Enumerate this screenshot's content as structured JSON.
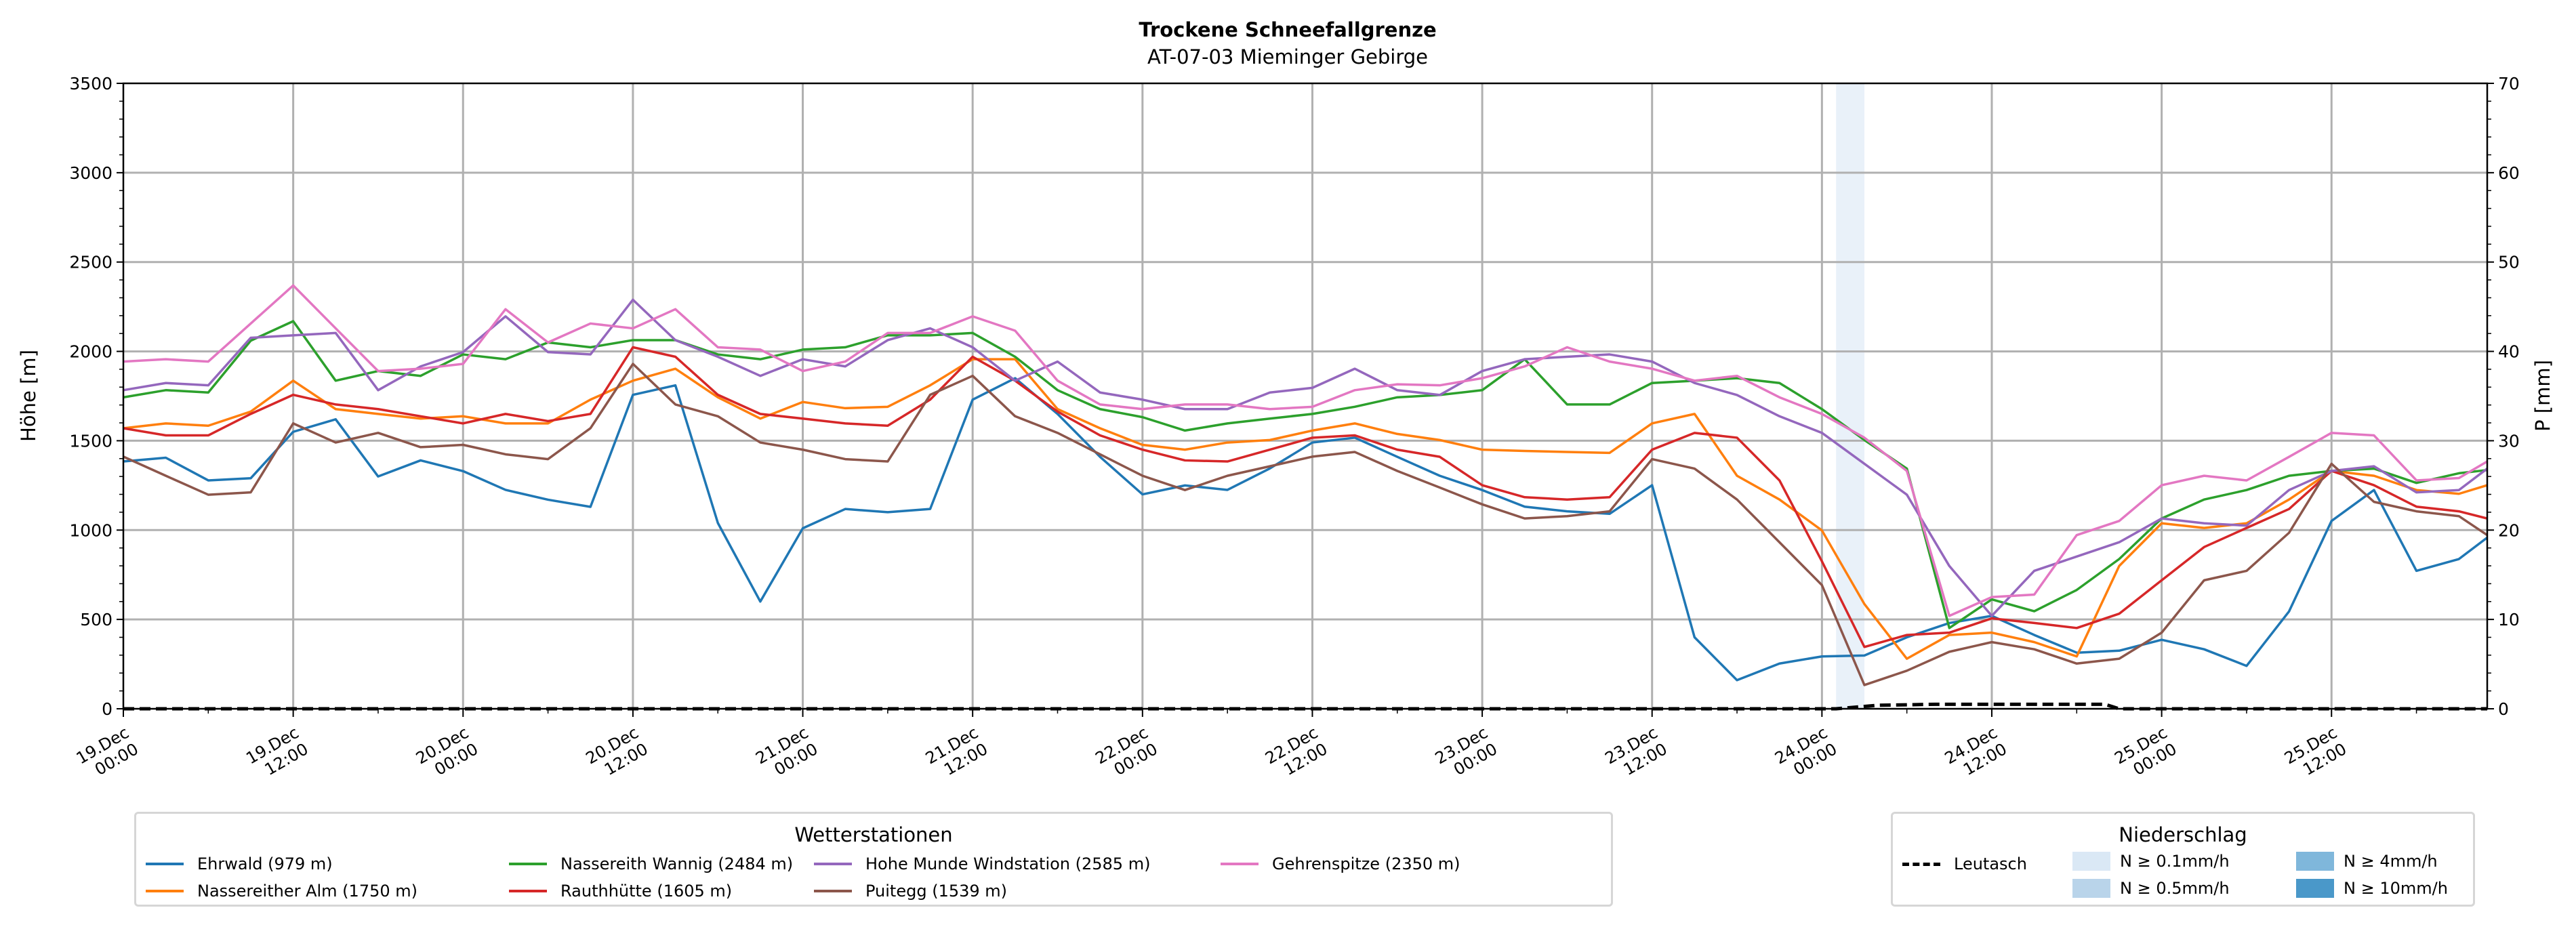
{
  "chart_data": {
    "type": "line",
    "title": "Trockene Schneefallgrenze",
    "subtitle": "AT-07-03 Mieminger Gebirge",
    "ylabel": "Höhe [m]",
    "y2label": "P [mm]",
    "ylim": [
      0,
      3500
    ],
    "y2lim": [
      0,
      70
    ],
    "yticks": [
      "0",
      "500",
      "1000",
      "1500",
      "2000",
      "2500",
      "3000",
      "3500"
    ],
    "y2ticks": [
      "0",
      "10",
      "20",
      "30",
      "40",
      "50",
      "60",
      "70"
    ],
    "x_unit": "hours since 19.Dec 00:00",
    "xlim": [
      0,
      167
    ],
    "xtick_labels": [
      [
        "19.Dec",
        "00:00"
      ],
      [
        "19.Dec",
        "12:00"
      ],
      [
        "20.Dec",
        "00:00"
      ],
      [
        "20.Dec",
        "12:00"
      ],
      [
        "21.Dec",
        "00:00"
      ],
      [
        "21.Dec",
        "12:00"
      ],
      [
        "22.Dec",
        "00:00"
      ],
      [
        "22.Dec",
        "12:00"
      ],
      [
        "23.Dec",
        "00:00"
      ],
      [
        "23.Dec",
        "12:00"
      ],
      [
        "24.Dec",
        "00:00"
      ],
      [
        "24.Dec",
        "12:00"
      ],
      [
        "25.Dec",
        "00:00"
      ],
      [
        "25.Dec",
        "12:00"
      ]
    ],
    "grid": true,
    "x": [
      0,
      3,
      6,
      9,
      12,
      15,
      18,
      21,
      24,
      27,
      30,
      33,
      36,
      39,
      42,
      45,
      48,
      51,
      54,
      57,
      60,
      63,
      66,
      69,
      72,
      75,
      78,
      81,
      84,
      87,
      90,
      93,
      96,
      99,
      102,
      105,
      108,
      111,
      114,
      117,
      120,
      123,
      126,
      129,
      132,
      135,
      138,
      141,
      144,
      147,
      150,
      153,
      156,
      159,
      162,
      165,
      167
    ],
    "series": [
      {
        "name": "Ehrwald (979 m)",
        "color": "#1f77b4",
        "values": [
          1384,
          1405,
          1278,
          1290,
          1550,
          1620,
          1300,
          1390,
          1330,
          1225,
          1170,
          1130,
          1757,
          1810,
          1040,
          600,
          1010,
          1118,
          1100,
          1118,
          1730,
          1850,
          1650,
          1410,
          1200,
          1250,
          1225,
          1345,
          1490,
          1517,
          1410,
          1304,
          1224,
          1131,
          1105,
          1091,
          1251,
          400,
          160,
          253,
          293,
          298,
          400,
          480,
          520,
          413,
          314,
          325,
          386,
          333,
          240,
          545,
          1051,
          1224,
          772,
          838,
          958
        ]
      },
      {
        "name": "Nassereither Alm (1750 m)",
        "color": "#ff7f0e",
        "values": [
          1570,
          1597,
          1584,
          1663,
          1836,
          1677,
          1650,
          1624,
          1637,
          1597,
          1597,
          1730,
          1836,
          1903,
          1743,
          1624,
          1717,
          1682,
          1690,
          1810,
          1956,
          1956,
          1677,
          1570,
          1477,
          1450,
          1490,
          1504,
          1557,
          1597,
          1538,
          1504,
          1450,
          1443,
          1437,
          1432,
          1597,
          1650,
          1304,
          1171,
          998,
          586,
          280,
          413,
          426,
          373,
          293,
          799,
          1038,
          1012,
          1038,
          1171,
          1331,
          1304,
          1224,
          1203,
          1251
        ]
      },
      {
        "name": "Nassereith Wannig (2484 m)",
        "color": "#2ca02c",
        "values": [
          1743,
          1783,
          1770,
          2060,
          2169,
          1836,
          1890,
          1863,
          1983,
          1956,
          2050,
          2023,
          2063,
          2063,
          1983,
          1956,
          2010,
          2023,
          2090,
          2090,
          2103,
          1970,
          1783,
          1677,
          1632,
          1557,
          1597,
          1624,
          1650,
          1690,
          1743,
          1756,
          1783,
          1956,
          1703,
          1703,
          1823,
          1836,
          1850,
          1823,
          1677,
          1504,
          1344,
          452,
          612,
          546,
          665,
          838,
          1065,
          1171,
          1224,
          1304,
          1331,
          1344,
          1264,
          1318,
          1336
        ]
      },
      {
        "name": "Rauthhütte (1605 m)",
        "color": "#d62728",
        "values": [
          1570,
          1530,
          1530,
          1650,
          1757,
          1703,
          1677,
          1637,
          1597,
          1650,
          1610,
          1650,
          2023,
          1970,
          1757,
          1650,
          1624,
          1597,
          1584,
          1730,
          1970,
          1836,
          1663,
          1530,
          1450,
          1390,
          1384,
          1450,
          1517,
          1530,
          1450,
          1410,
          1251,
          1184,
          1171,
          1184,
          1450,
          1544,
          1517,
          1278,
          825,
          346,
          413,
          426,
          506,
          480,
          452,
          532,
          719,
          905,
          1012,
          1118,
          1331,
          1251,
          1131,
          1105,
          1065
        ]
      },
      {
        "name": "Hohe Munde Windstation (2585 m)",
        "color": "#9467bd",
        "values": [
          1783,
          1823,
          1810,
          2076,
          2090,
          2103,
          1783,
          1916,
          1996,
          2196,
          1996,
          1983,
          2289,
          2063,
          1970,
          1863,
          1956,
          1916,
          2063,
          2129,
          2023,
          1836,
          1943,
          1770,
          1730,
          1677,
          1677,
          1770,
          1796,
          1903,
          1783,
          1756,
          1890,
          1956,
          1970,
          1983,
          1943,
          1823,
          1756,
          1637,
          1544,
          1371,
          1198,
          799,
          520,
          772,
          852,
          932,
          1065,
          1038,
          1025,
          1224,
          1331,
          1357,
          1211,
          1224,
          1344
        ]
      },
      {
        "name": "Puitegg (1539 m)",
        "color": "#8c564b",
        "values": [
          1411,
          1304,
          1198,
          1211,
          1597,
          1490,
          1544,
          1464,
          1477,
          1424,
          1397,
          1570,
          1930,
          1703,
          1637,
          1490,
          1450,
          1397,
          1384,
          1757,
          1863,
          1637,
          1544,
          1424,
          1304,
          1224,
          1304,
          1357,
          1411,
          1437,
          1331,
          1238,
          1144,
          1065,
          1078,
          1105,
          1397,
          1344,
          1171,
          932,
          692,
          133,
          213,
          319,
          373,
          333,
          253,
          280,
          426,
          719,
          772,
          985,
          1371,
          1158,
          1105,
          1078,
          972
        ]
      },
      {
        "name": "Gehrenspitze (2350 m)",
        "color": "#e377c2",
        "values": [
          1943,
          1956,
          1943,
          2156,
          2369,
          2129,
          1890,
          1903,
          1930,
          2236,
          2050,
          2156,
          2129,
          2236,
          2023,
          2010,
          1890,
          1943,
          2103,
          2103,
          2196,
          2116,
          1836,
          1703,
          1677,
          1703,
          1703,
          1677,
          1690,
          1783,
          1816,
          1810,
          1850,
          1916,
          2023,
          1943,
          1903,
          1836,
          1863,
          1743,
          1650,
          1517,
          1331,
          520,
          625,
          639,
          972,
          1051,
          1251,
          1304,
          1278,
          1410,
          1544,
          1530,
          1278,
          1291,
          1384
        ]
      }
    ],
    "precip_series": {
      "name": "Leutasch",
      "unit": "mm",
      "axis": "right",
      "style": "dashed",
      "color": "#000000",
      "x": [
        0,
        121,
        124,
        128,
        140,
        141,
        167
      ],
      "values": [
        0,
        0,
        0.4,
        0.5,
        0.5,
        0,
        0
      ]
    },
    "precip_intensity_bands": [
      {
        "x_start": 121,
        "x_end": 123,
        "class": "N ≥ 0.1mm/h",
        "color": "#dae8f5"
      }
    ],
    "legend_left": {
      "title": "Wetterstationen",
      "placement": "bottom-left"
    },
    "legend_right": {
      "title": "Niederschlag",
      "placement": "bottom-right",
      "line_label": "Leutasch",
      "classes": [
        {
          "label": "N ≥ 0.1mm/h",
          "color": "#dae8f5"
        },
        {
          "label": "N ≥ 0.5mm/h",
          "color": "#b9d4ea"
        },
        {
          "label": "N ≥ 4mm/h",
          "color": "#7fb7db"
        },
        {
          "label": "N ≥ 10mm/h",
          "color": "#4a98c9"
        }
      ]
    }
  }
}
